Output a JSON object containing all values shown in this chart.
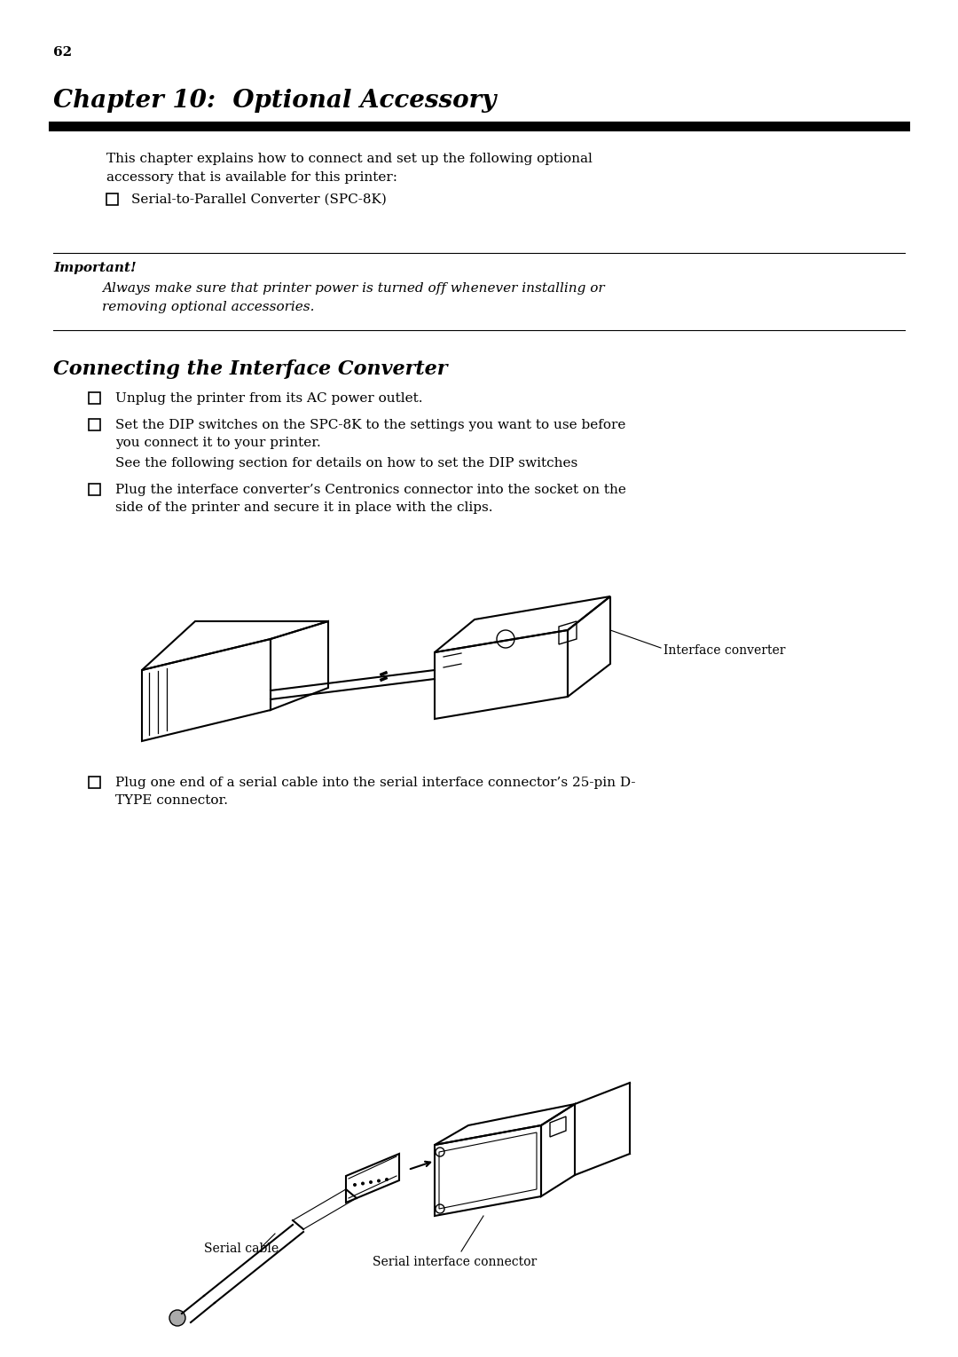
{
  "page_number": "62",
  "chapter_title": "Chapter 10:  Optional Accessory",
  "intro_text_1": "This chapter explains how to connect and set up the following optional",
  "intro_text_2": "accessory that is available for this printer:",
  "bullet1": "Serial-to-Parallel Converter (SPC-8K)",
  "important_label": "Important!",
  "important_text_1": "Always make sure that printer power is turned off whenever installing or",
  "important_text_2": "removing optional accessories.",
  "section_title": "Connecting the Interface Converter",
  "step1": "Unplug the printer from its AC power outlet.",
  "step2_line1": "Set the DIP switches on the SPC-8K to the settings you want to use before",
  "step2_line2": "you connect it to your printer.",
  "step2_line3": "See the following section for details on how to set the DIP switches",
  "step3_line1": "Plug the interface converter’s Centronics connector into the socket on the",
  "step3_line2": "side of the printer and secure it in place with the clips.",
  "label_interface": "Interface converter",
  "step4_line1": "Plug one end of a serial cable into the serial interface connector’s 25-pin D-",
  "step4_line2": "TYPE connector.",
  "label_serial_cable": "Serial cable",
  "label_serial_connector": "Serial interface connector",
  "bg_color": "#ffffff",
  "text_color": "#000000",
  "font_size_page_num": 11,
  "font_size_chapter": 20,
  "font_size_body": 11,
  "font_size_section": 16,
  "font_size_important": 11
}
